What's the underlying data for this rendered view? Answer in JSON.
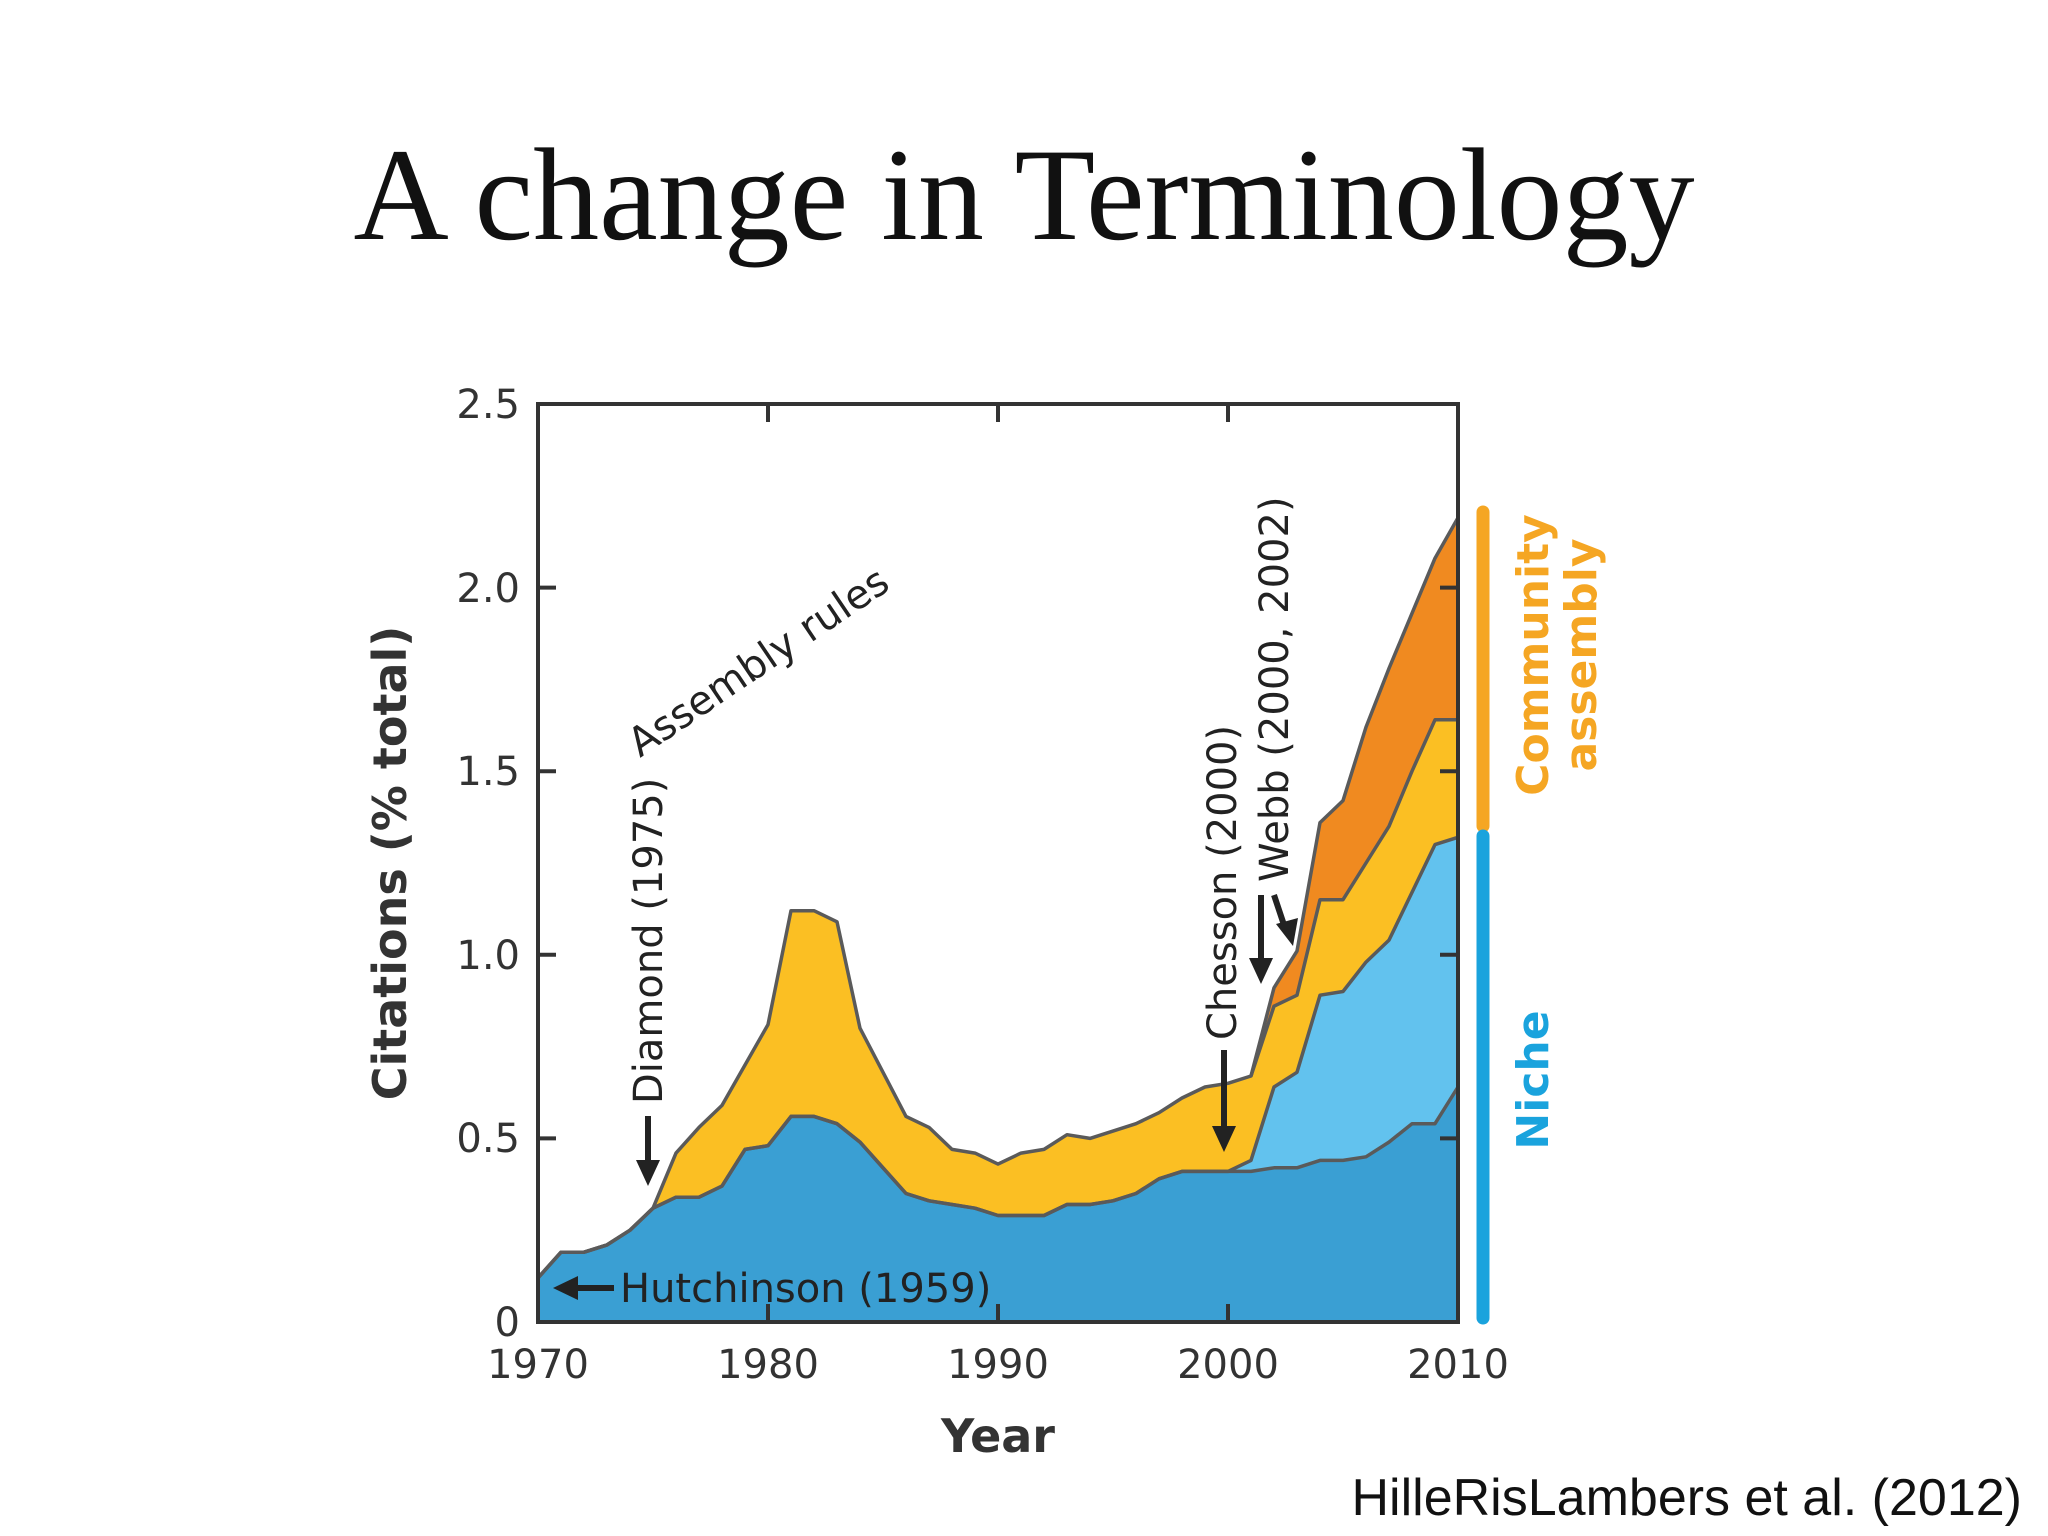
{
  "slide": {
    "title": "A change in Terminology",
    "citation": "HilleRisLambers et al. (2012)"
  },
  "colors": {
    "niche_dark": "#3a9fd3",
    "niche_light": "#62c2ee",
    "assembly_yellow": "#fbbf23",
    "assembly_orange": "#f08a20",
    "outline": "#5a5a5a",
    "bar_community": "#f5a623",
    "bar_niche": "#1aa3dd",
    "label_community": "#f5a623",
    "label_niche": "#1aa3dd"
  },
  "chart_data": {
    "type": "area",
    "stacked": true,
    "xlabel": "Year",
    "ylabel": "Citations (% total)",
    "xlim": [
      1970,
      2010
    ],
    "ylim": [
      0,
      2.5
    ],
    "x_ticks": [
      "1970",
      "1980",
      "1990",
      "2000",
      "2010"
    ],
    "y_ticks": [
      "0",
      "0.5",
      "1.0",
      "1.5",
      "2.0",
      "2.5"
    ],
    "grid": false,
    "series_cumulative": [
      {
        "key": "layer1",
        "color": "#3a9fd3",
        "points": [
          [
            1970,
            0.12
          ],
          [
            1971,
            0.19
          ],
          [
            1972,
            0.19
          ],
          [
            1973,
            0.21
          ],
          [
            1974,
            0.25
          ],
          [
            1975,
            0.31
          ],
          [
            1976,
            0.34
          ],
          [
            1977,
            0.34
          ],
          [
            1978,
            0.37
          ],
          [
            1979,
            0.47
          ],
          [
            1980,
            0.48
          ],
          [
            1981,
            0.56
          ],
          [
            1982,
            0.56
          ],
          [
            1983,
            0.54
          ],
          [
            1984,
            0.49
          ],
          [
            1985,
            0.42
          ],
          [
            1986,
            0.35
          ],
          [
            1987,
            0.33
          ],
          [
            1988,
            0.32
          ],
          [
            1989,
            0.31
          ],
          [
            1990,
            0.29
          ],
          [
            1991,
            0.29
          ],
          [
            1992,
            0.29
          ],
          [
            1993,
            0.32
          ],
          [
            1994,
            0.32
          ],
          [
            1995,
            0.33
          ],
          [
            1996,
            0.35
          ],
          [
            1997,
            0.39
          ],
          [
            1998,
            0.41
          ],
          [
            1999,
            0.41
          ],
          [
            2000,
            0.41
          ],
          [
            2001,
            0.41
          ],
          [
            2002,
            0.42
          ],
          [
            2003,
            0.42
          ],
          [
            2004,
            0.44
          ],
          [
            2005,
            0.44
          ],
          [
            2006,
            0.45
          ],
          [
            2007,
            0.49
          ],
          [
            2008,
            0.54
          ],
          [
            2009,
            0.54
          ],
          [
            2010,
            0.64
          ]
        ]
      },
      {
        "key": "layer2",
        "color": "#62c2ee",
        "points": [
          [
            1970,
            0.12
          ],
          [
            1971,
            0.19
          ],
          [
            1972,
            0.19
          ],
          [
            1973,
            0.21
          ],
          [
            1974,
            0.25
          ],
          [
            1975,
            0.31
          ],
          [
            1976,
            0.34
          ],
          [
            1977,
            0.34
          ],
          [
            1978,
            0.37
          ],
          [
            1979,
            0.47
          ],
          [
            1980,
            0.48
          ],
          [
            1981,
            0.56
          ],
          [
            1982,
            0.56
          ],
          [
            1983,
            0.54
          ],
          [
            1984,
            0.49
          ],
          [
            1985,
            0.42
          ],
          [
            1986,
            0.35
          ],
          [
            1987,
            0.33
          ],
          [
            1988,
            0.32
          ],
          [
            1989,
            0.31
          ],
          [
            1990,
            0.29
          ],
          [
            1991,
            0.29
          ],
          [
            1992,
            0.29
          ],
          [
            1993,
            0.32
          ],
          [
            1994,
            0.32
          ],
          [
            1995,
            0.33
          ],
          [
            1996,
            0.35
          ],
          [
            1997,
            0.39
          ],
          [
            1998,
            0.41
          ],
          [
            1999,
            0.41
          ],
          [
            2000,
            0.41
          ],
          [
            2001,
            0.44
          ],
          [
            2002,
            0.64
          ],
          [
            2003,
            0.68
          ],
          [
            2004,
            0.89
          ],
          [
            2005,
            0.9
          ],
          [
            2006,
            0.98
          ],
          [
            2007,
            1.04
          ],
          [
            2008,
            1.17
          ],
          [
            2009,
            1.3
          ],
          [
            2010,
            1.32
          ]
        ]
      },
      {
        "key": "layer3",
        "color": "#fbbf23",
        "points": [
          [
            1970,
            0.12
          ],
          [
            1971,
            0.19
          ],
          [
            1972,
            0.19
          ],
          [
            1973,
            0.21
          ],
          [
            1974,
            0.25
          ],
          [
            1975,
            0.31
          ],
          [
            1976,
            0.46
          ],
          [
            1977,
            0.53
          ],
          [
            1978,
            0.59
          ],
          [
            1979,
            0.7
          ],
          [
            1980,
            0.81
          ],
          [
            1981,
            1.12
          ],
          [
            1982,
            1.12
          ],
          [
            1983,
            1.09
          ],
          [
            1984,
            0.8
          ],
          [
            1985,
            0.68
          ],
          [
            1986,
            0.56
          ],
          [
            1987,
            0.53
          ],
          [
            1988,
            0.47
          ],
          [
            1989,
            0.46
          ],
          [
            1990,
            0.43
          ],
          [
            1991,
            0.46
          ],
          [
            1992,
            0.47
          ],
          [
            1993,
            0.51
          ],
          [
            1994,
            0.5
          ],
          [
            1995,
            0.52
          ],
          [
            1996,
            0.54
          ],
          [
            1997,
            0.57
          ],
          [
            1998,
            0.61
          ],
          [
            1999,
            0.64
          ],
          [
            2000,
            0.65
          ],
          [
            2001,
            0.67
          ],
          [
            2002,
            0.86
          ],
          [
            2003,
            0.89
          ],
          [
            2004,
            1.15
          ],
          [
            2005,
            1.15
          ],
          [
            2006,
            1.25
          ],
          [
            2007,
            1.35
          ],
          [
            2008,
            1.5
          ],
          [
            2009,
            1.64
          ],
          [
            2010,
            1.64
          ]
        ]
      },
      {
        "key": "layer4",
        "color": "#f08a20",
        "points": [
          [
            2001,
            0.67
          ],
          [
            2002,
            0.91
          ],
          [
            2003,
            1.01
          ],
          [
            2004,
            1.36
          ],
          [
            2005,
            1.42
          ],
          [
            2006,
            1.62
          ],
          [
            2007,
            1.78
          ],
          [
            2008,
            1.93
          ],
          [
            2009,
            2.08
          ],
          [
            2010,
            2.19
          ]
        ]
      }
    ],
    "annotations": [
      {
        "text": "Hutchinson (1959)",
        "year": 1970.3,
        "value": 0.09,
        "orientation": "horizontal"
      },
      {
        "text": "Diamond (1975)",
        "year": 1975,
        "value": 0.38,
        "orientation": "vertical"
      },
      {
        "text": "Assembly rules",
        "year": 1974,
        "value": 1.55,
        "orientation": "diagonal"
      },
      {
        "text": "Chesson (2000)",
        "year": 2000,
        "value": 0.44,
        "orientation": "vertical"
      },
      {
        "text": "Webb (2000, 2002)",
        "year": 2002.6,
        "value": 1.02,
        "orientation": "vertical"
      }
    ],
    "bracket_labels": {
      "community": "Community\nassembly",
      "community_line1": "Community",
      "community_line2": "assembly",
      "community_range": [
        1.35,
        2.2
      ],
      "niche": "Niche",
      "niche_range": [
        0,
        1.32
      ]
    }
  }
}
